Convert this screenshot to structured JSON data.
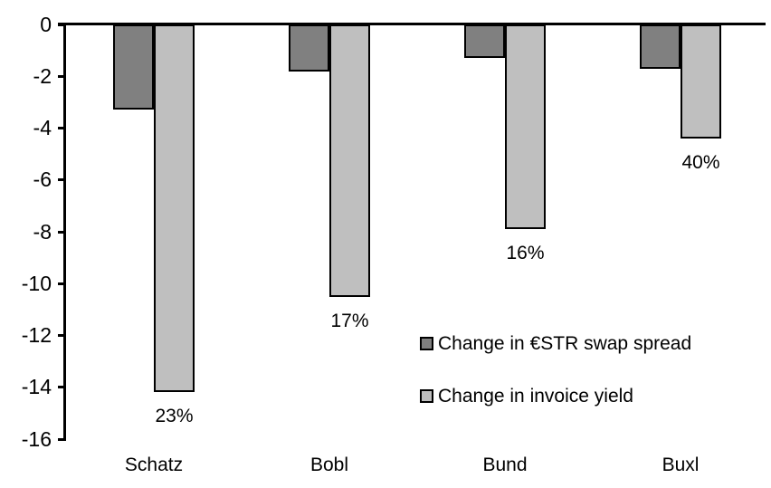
{
  "chart_data": {
    "type": "bar",
    "title": "",
    "xlabel": "",
    "ylabel": "",
    "categories": [
      "Schatz",
      "Bobl",
      "Bund",
      "Buxl"
    ],
    "series": [
      {
        "name": "Change in €STR swap spread",
        "color": "#808080",
        "values": [
          -3.3,
          -1.8,
          -1.3,
          -1.7
        ]
      },
      {
        "name": "Change in invoice yield",
        "color": "#bfbfbf",
        "values": [
          -14.2,
          -10.5,
          -7.9,
          -4.4
        ]
      }
    ],
    "bar_labels": {
      "series": "Change in invoice yield",
      "values": [
        "23%",
        "17%",
        "16%",
        "40%"
      ]
    },
    "ylim": [
      -16,
      0
    ],
    "yticks": [
      0,
      -2,
      -4,
      -6,
      -8,
      -10,
      -12,
      -14,
      -16
    ],
    "grid": false,
    "legend_position": "inside-right",
    "axis_color": "#000000",
    "background_color": "#ffffff"
  }
}
